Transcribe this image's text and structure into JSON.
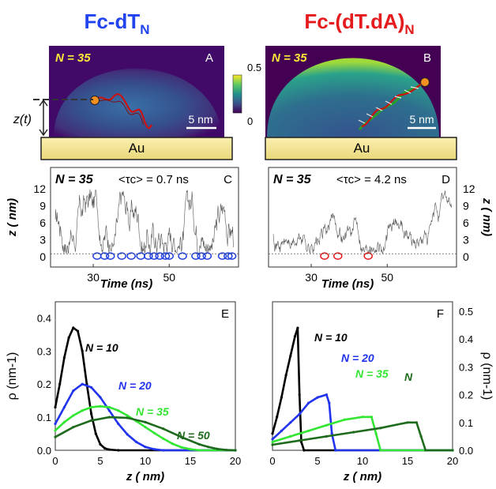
{
  "columns": {
    "left_title": {
      "main": "Fc-dT",
      "sub": "N"
    },
    "right_title": {
      "main": "Fc-(dT.dA)",
      "sub": "N"
    }
  },
  "colors": {
    "left_title": "#2244ee",
    "right_title": "#e41a1c",
    "gold": "#f2e08a",
    "dna_red": "#cc1111",
    "dna_green": "#2a9d2a",
    "fc_orange": "#f29020"
  },
  "panels": {
    "A": {
      "label": "A",
      "n_text": "N = 35",
      "scalebar": "5 nm",
      "surface": "Au",
      "z_label": "z(t)"
    },
    "B": {
      "label": "B",
      "n_text": "N = 35",
      "scalebar": "5 nm",
      "surface": "Au"
    },
    "colorbar": {
      "max": "0.5",
      "min": "0",
      "colormap": "viridis"
    },
    "C": {
      "label": "C",
      "n_text": "N = 35",
      "tau_text": "<τc> = 0.7 ns",
      "ylabel": "z ( nm)",
      "xlabel": "Time (ns)",
      "marker_color": "#1f3fdd"
    },
    "D": {
      "label": "D",
      "n_text": "N = 35",
      "tau_text": "<τc> = 4.2 ns",
      "ylabel": "z ( nm)",
      "xlabel": "Time (ns)",
      "marker_color": "#e41a1c"
    },
    "E": {
      "label": "E",
      "ylabel": "ρ (nm-1)",
      "xlabel": "z ( nm)"
    },
    "F": {
      "label": "F",
      "ylabel": "ρ (nm-1)",
      "xlabel": "z ( nm)"
    }
  },
  "chart_data": [
    {
      "type": "line",
      "panel": "C",
      "ylabel": "z ( nm)",
      "xlabel": "Time (ns)",
      "xlim": [
        20,
        67
      ],
      "ylim": [
        -1,
        13
      ],
      "xticks": [
        30,
        50
      ],
      "yticks": [
        0,
        3,
        6,
        9,
        12
      ],
      "baseline": 0.5,
      "contact_times": [
        31.0,
        33.0,
        34.5,
        37.5,
        40.0,
        42.5,
        44.5,
        46.0,
        47.5,
        49.0,
        50.0,
        53.5,
        57.0,
        58.5,
        60.0,
        64.0,
        65.5,
        66.5
      ]
    },
    {
      "type": "line",
      "panel": "D",
      "ylabel": "z ( nm)",
      "xlabel": "Time (ns)",
      "xlim": [
        20,
        67
      ],
      "ylim": [
        -1,
        13
      ],
      "xticks": [
        30,
        50
      ],
      "yticks": [
        0,
        3,
        6,
        9,
        12
      ],
      "baseline": 0.5,
      "contact_times": [
        33.5,
        37.0,
        45.0
      ]
    },
    {
      "type": "line",
      "panel": "E",
      "xlabel": "z ( nm)",
      "ylabel": "ρ (nm-1)",
      "xlim": [
        0,
        20
      ],
      "ylim": [
        0,
        0.42
      ],
      "xticks": [
        0,
        5,
        10,
        15,
        20
      ],
      "yticks": [
        0.0,
        0.1,
        0.2,
        0.3,
        0.4
      ],
      "series": [
        {
          "name": "N = 10",
          "color": "#000000",
          "x": [
            0,
            0.5,
            1,
            1.5,
            2,
            2.5,
            3,
            3.5,
            4,
            4.5,
            5,
            5.5,
            6,
            7,
            20
          ],
          "y": [
            0.13,
            0.2,
            0.28,
            0.34,
            0.37,
            0.36,
            0.3,
            0.2,
            0.11,
            0.05,
            0.018,
            0.006,
            0.002,
            0.0,
            0.0
          ]
        },
        {
          "name": "N = 20",
          "color": "#2233ee",
          "x": [
            0,
            1,
            2,
            3,
            4,
            5,
            6,
            7,
            8,
            9,
            10,
            11,
            12,
            20
          ],
          "y": [
            0.08,
            0.13,
            0.18,
            0.2,
            0.19,
            0.16,
            0.12,
            0.08,
            0.048,
            0.025,
            0.01,
            0.003,
            0.0,
            0.0
          ]
        },
        {
          "name": "N = 35",
          "color": "#33e633",
          "x": [
            0,
            1,
            2,
            3,
            4,
            5,
            6,
            7,
            8,
            9,
            10,
            11,
            12,
            13,
            14,
            15,
            16,
            20
          ],
          "y": [
            0.06,
            0.085,
            0.105,
            0.12,
            0.13,
            0.133,
            0.13,
            0.12,
            0.105,
            0.088,
            0.07,
            0.052,
            0.035,
            0.02,
            0.009,
            0.003,
            0.0,
            0.0
          ]
        },
        {
          "name": "N = 50",
          "color": "#1e6b1e",
          "x": [
            0,
            2,
            4,
            6,
            8,
            10,
            12,
            14,
            16,
            17,
            18,
            19,
            20
          ],
          "y": [
            0.04,
            0.07,
            0.09,
            0.1,
            0.098,
            0.085,
            0.065,
            0.04,
            0.018,
            0.01,
            0.004,
            0.001,
            0.0
          ]
        }
      ]
    },
    {
      "type": "line",
      "panel": "F",
      "xlabel": "z ( nm)",
      "ylabel": "ρ (nm-1)",
      "xlim": [
        0,
        20
      ],
      "ylim": [
        0,
        0.5
      ],
      "xticks": [
        0,
        5,
        10,
        15,
        20
      ],
      "yticks": [
        0.0,
        0.1,
        0.2,
        0.3,
        0.4,
        0.5
      ],
      "series": [
        {
          "name": "N = 10",
          "color": "#000000",
          "x": [
            0,
            0.5,
            1,
            1.5,
            2,
            2.5,
            2.8,
            3.0,
            3.2,
            3.5,
            20
          ],
          "y": [
            0.06,
            0.12,
            0.19,
            0.27,
            0.34,
            0.41,
            0.44,
            0.2,
            0.03,
            0.0,
            0.0
          ]
        },
        {
          "name": "N = 20",
          "color": "#2233ee",
          "x": [
            0,
            1,
            2,
            3,
            4,
            5,
            6,
            6.3,
            6.6,
            7.0,
            20
          ],
          "y": [
            0.04,
            0.07,
            0.1,
            0.13,
            0.17,
            0.19,
            0.2,
            0.17,
            0.06,
            0.0,
            0.0
          ]
        },
        {
          "name": "N = 35",
          "color": "#33e633",
          "x": [
            0,
            2,
            4,
            6,
            8,
            10,
            11,
            11.5,
            12,
            20
          ],
          "y": [
            0.03,
            0.05,
            0.07,
            0.09,
            0.11,
            0.12,
            0.12,
            0.06,
            0.0,
            0.0
          ]
        },
        {
          "name": "N",
          "color": "#1e6b1e",
          "x": [
            0,
            3,
            6,
            9,
            12,
            15,
            16,
            16.5,
            17,
            20
          ],
          "y": [
            0.02,
            0.035,
            0.05,
            0.065,
            0.08,
            0.1,
            0.1,
            0.05,
            0.0,
            0.0
          ]
        }
      ]
    }
  ]
}
